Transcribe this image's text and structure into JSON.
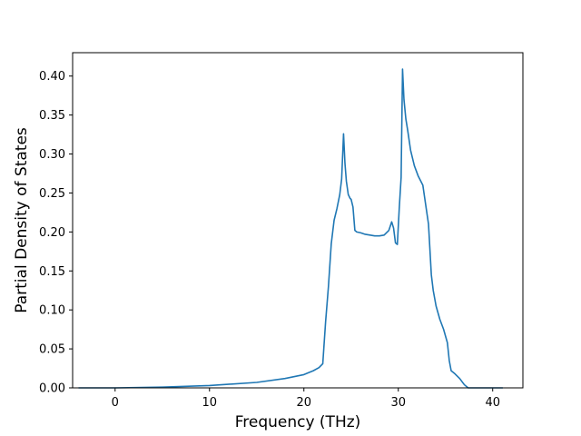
{
  "chart_data": {
    "type": "line",
    "title": "",
    "xlabel": "Frequency (THz)",
    "ylabel": "Partial Density of States",
    "xlim": [
      -4.5,
      43.2
    ],
    "ylim": [
      0,
      0.43
    ],
    "xticks": [
      0,
      10,
      20,
      30,
      40
    ],
    "yticks": [
      0.0,
      0.05,
      0.1,
      0.15,
      0.2,
      0.25,
      0.3,
      0.35,
      0.4
    ],
    "xtick_labels": [
      "0",
      "10",
      "20",
      "30",
      "40"
    ],
    "ytick_labels": [
      "0.00",
      "0.05",
      "0.10",
      "0.15",
      "0.20",
      "0.25",
      "0.30",
      "0.35",
      "0.40"
    ],
    "grid": false,
    "legend": false,
    "series": [
      {
        "color": "#1f77b4",
        "x": [
          -3.8,
          0,
          5,
          10,
          15,
          18,
          20,
          21,
          21.6,
          22,
          22.3,
          22.6,
          22.9,
          23.2,
          23.5,
          23.8,
          24.0,
          24.2,
          24.35,
          24.5,
          24.7,
          24.9,
          25.0,
          25.2,
          25.4,
          25.6,
          26.0,
          26.5,
          27.0,
          27.5,
          28.0,
          28.5,
          29.0,
          29.3,
          29.5,
          29.7,
          29.9,
          30.1,
          30.3,
          30.45,
          30.6,
          30.8,
          31.0,
          31.3,
          31.7,
          32.1,
          32.6,
          32.9,
          33.2,
          33.5,
          33.7,
          34.0,
          34.4,
          34.8,
          35.2,
          35.4,
          35.6,
          36.0,
          36.5,
          37.0,
          37.4,
          38.0,
          39.0,
          41.0
        ],
        "y": [
          0.0,
          0.0,
          0.001,
          0.003,
          0.007,
          0.012,
          0.017,
          0.022,
          0.026,
          0.031,
          0.085,
          0.13,
          0.185,
          0.215,
          0.23,
          0.248,
          0.268,
          0.326,
          0.288,
          0.265,
          0.248,
          0.243,
          0.242,
          0.232,
          0.202,
          0.2,
          0.199,
          0.197,
          0.196,
          0.195,
          0.195,
          0.196,
          0.202,
          0.213,
          0.205,
          0.186,
          0.184,
          0.23,
          0.27,
          0.409,
          0.37,
          0.345,
          0.33,
          0.305,
          0.285,
          0.272,
          0.26,
          0.235,
          0.21,
          0.145,
          0.125,
          0.105,
          0.088,
          0.075,
          0.058,
          0.035,
          0.022,
          0.018,
          0.012,
          0.004,
          0.0,
          0.0,
          0.0,
          0.0
        ]
      }
    ]
  }
}
